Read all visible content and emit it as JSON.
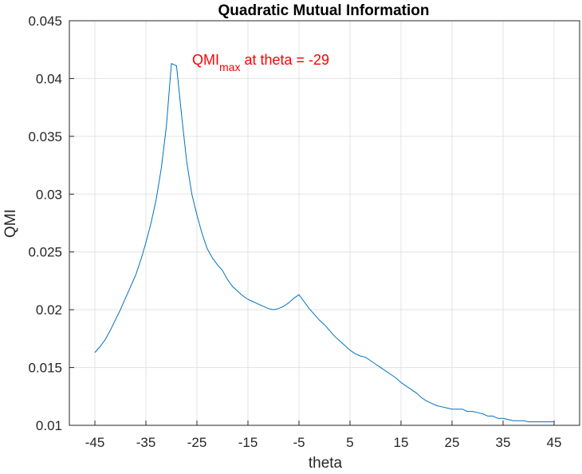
{
  "chart_data": {
    "type": "line",
    "title": "Quadratic Mutual Information",
    "xlabel": "theta",
    "ylabel": "QMI",
    "xlim": [
      -50,
      50
    ],
    "ylim": [
      0.01,
      0.045
    ],
    "grid": true,
    "xticks": [
      "-45",
      "-35",
      "-25",
      "-15",
      "-5",
      "5",
      "15",
      "25",
      "35",
      "45"
    ],
    "xtick_values": [
      -45,
      -35,
      -25,
      -15,
      -5,
      5,
      15,
      25,
      35,
      45
    ],
    "yticks": [
      "0.01",
      "0.015",
      "0.02",
      "0.025",
      "0.03",
      "0.035",
      "0.04",
      "0.045"
    ],
    "ytick_values": [
      0.01,
      0.015,
      0.02,
      0.025,
      0.03,
      0.035,
      0.04,
      0.045
    ],
    "series": [
      {
        "color": "#0072bd",
        "x": [
          -45,
          -44,
          -43,
          -42,
          -41,
          -40,
          -39,
          -38,
          -37,
          -36,
          -35,
          -34,
          -33,
          -32,
          -31,
          -30,
          -29,
          -28,
          -27,
          -26,
          -25,
          -24,
          -23,
          -22,
          -21,
          -20,
          -19,
          -18,
          -17,
          -16,
          -15,
          -14,
          -13,
          -12,
          -11,
          -10,
          -9,
          -8,
          -7,
          -6,
          -5,
          -4,
          -3,
          -2,
          -1,
          0,
          1,
          2,
          3,
          4,
          5,
          6,
          7,
          8,
          9,
          10,
          11,
          12,
          13,
          14,
          15,
          16,
          17,
          18,
          19,
          20,
          21,
          22,
          23,
          24,
          25,
          26,
          27,
          28,
          29,
          30,
          31,
          32,
          33,
          34,
          35,
          36,
          37,
          38,
          39,
          40,
          41,
          42,
          43,
          44,
          45
        ],
        "y": [
          0.0163,
          0.0168,
          0.0174,
          0.0182,
          0.0191,
          0.02,
          0.021,
          0.022,
          0.023,
          0.0243,
          0.0258,
          0.0275,
          0.0295,
          0.0322,
          0.0358,
          0.0413,
          0.0411,
          0.0368,
          0.0328,
          0.03,
          0.0282,
          0.0266,
          0.0253,
          0.0245,
          0.0239,
          0.0234,
          0.0226,
          0.022,
          0.0216,
          0.0212,
          0.0209,
          0.0207,
          0.0205,
          0.0203,
          0.0201,
          0.02,
          0.0201,
          0.0203,
          0.0206,
          0.021,
          0.0213,
          0.0207,
          0.0201,
          0.0196,
          0.0191,
          0.0187,
          0.0182,
          0.0177,
          0.0173,
          0.0169,
          0.0165,
          0.0162,
          0.016,
          0.0159,
          0.0156,
          0.0153,
          0.015,
          0.0147,
          0.0144,
          0.0141,
          0.0137,
          0.0134,
          0.0131,
          0.0128,
          0.0124,
          0.0121,
          0.0119,
          0.0117,
          0.0116,
          0.0115,
          0.0114,
          0.0114,
          0.0114,
          0.0112,
          0.0112,
          0.0111,
          0.011,
          0.0108,
          0.0108,
          0.0106,
          0.0106,
          0.0105,
          0.0104,
          0.0104,
          0.0104,
          0.0103,
          0.0103,
          0.0103,
          0.0103,
          0.0103,
          0.0103
        ]
      }
    ],
    "annotation": {
      "main": "QMI",
      "subscript": "max",
      "rest": " at theta = -29",
      "color": "#ff0000"
    }
  }
}
